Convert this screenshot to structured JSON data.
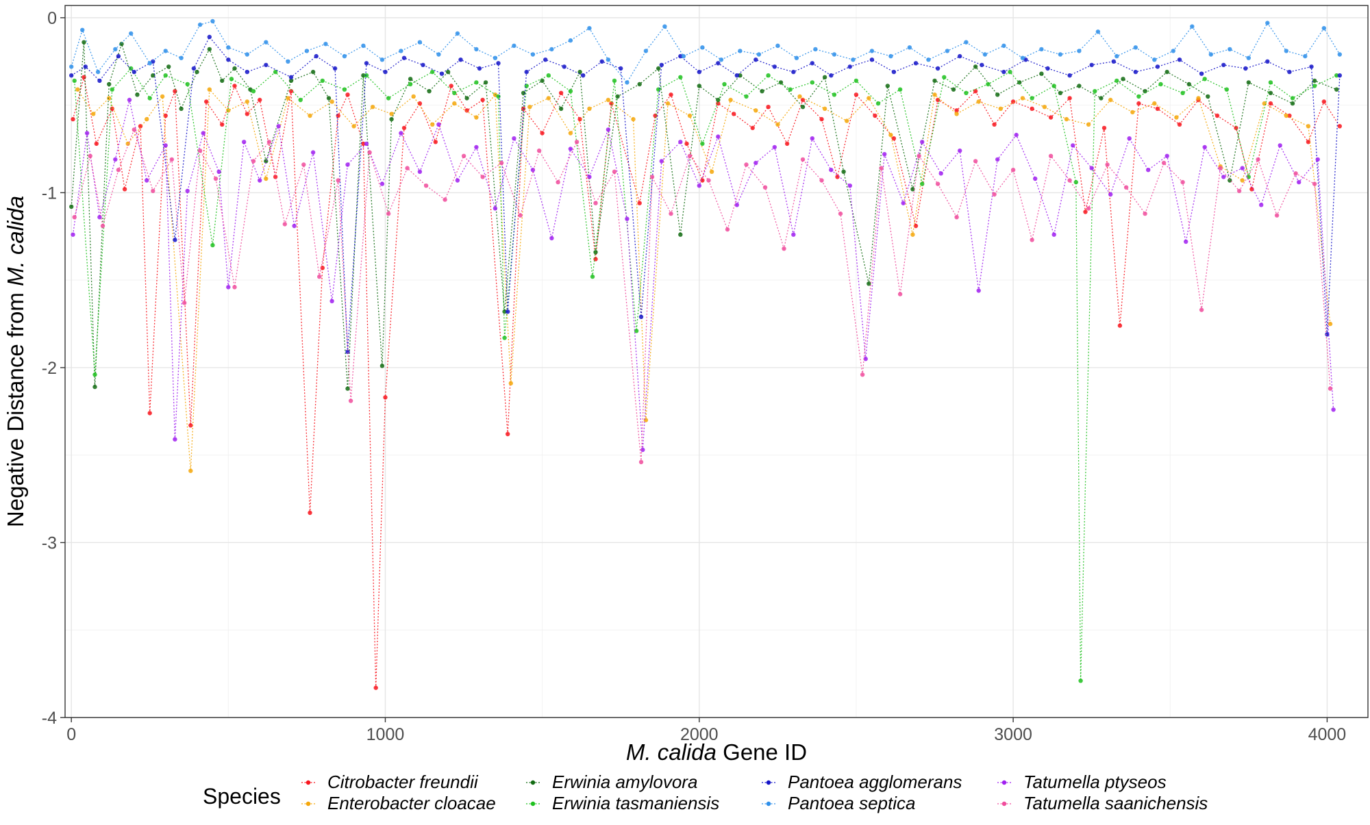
{
  "chart_data": {
    "type": "line",
    "xlabel": {
      "italic": "M. calida",
      "rest": " Gene ID"
    },
    "ylabel": {
      "rest": "Negative Distance from ",
      "italic": "M. calida"
    },
    "xlim": [
      -20,
      4130
    ],
    "ylim": [
      -4.0,
      0.07
    ],
    "x_ticks": [
      0,
      1000,
      2000,
      3000,
      4000
    ],
    "y_ticks": [
      -4,
      -3,
      -2,
      -1,
      0
    ],
    "x_tick_labels": [
      "0",
      "1000",
      "2000",
      "3000",
      "4000"
    ],
    "y_tick_labels": [
      "-4",
      "-3",
      "-2",
      "-1",
      "0"
    ],
    "grid": true,
    "line_style": "dotted",
    "legend": {
      "title": "Species",
      "position": "bottom"
    },
    "series": [
      {
        "name": "Citrobacter freundii",
        "color": "#F8151D",
        "x": [
          5,
          40,
          80,
          130,
          170,
          220,
          250,
          300,
          330,
          380,
          430,
          480,
          520,
          560,
          600,
          650,
          700,
          760,
          800,
          850,
          880,
          930,
          970,
          1000,
          1060,
          1110,
          1160,
          1210,
          1260,
          1310,
          1390,
          1440,
          1500,
          1560,
          1620,
          1670,
          1720,
          1810,
          1860,
          1910,
          1960,
          2010,
          2060,
          2110,
          2170,
          2220,
          2280,
          2330,
          2390,
          2440,
          2500,
          2560,
          2620,
          2690,
          2760,
          2820,
          2880,
          2940,
          3000,
          3060,
          3120,
          3180,
          3230,
          3290,
          3340,
          3400,
          3460,
          3530,
          3590,
          3650,
          3710,
          3760,
          3820,
          3880,
          3940,
          3990,
          4040
        ],
        "values": [
          -0.58,
          -0.34,
          -0.72,
          -0.52,
          -0.98,
          -0.62,
          -2.26,
          -0.56,
          -0.42,
          -2.33,
          -0.48,
          -0.61,
          -0.39,
          -0.55,
          -0.47,
          -0.91,
          -0.42,
          -2.83,
          -1.43,
          -0.56,
          -0.44,
          -0.72,
          -3.83,
          -2.17,
          -0.63,
          -0.49,
          -0.71,
          -0.39,
          -0.53,
          -0.47,
          -2.38,
          -0.52,
          -0.66,
          -0.43,
          -0.58,
          -1.38,
          -0.49,
          -1.06,
          -0.56,
          -0.44,
          -0.72,
          -0.93,
          -0.49,
          -0.55,
          -0.63,
          -0.51,
          -0.72,
          -0.47,
          -0.58,
          -0.91,
          -0.44,
          -0.56,
          -0.69,
          -1.19,
          -0.47,
          -0.53,
          -0.42,
          -0.61,
          -0.48,
          -0.52,
          -0.57,
          -0.46,
          -1.11,
          -0.63,
          -1.76,
          -0.49,
          -0.52,
          -0.61,
          -0.47,
          -0.56,
          -0.63,
          -0.98,
          -0.49,
          -0.56,
          -0.71,
          -0.48,
          -0.62
        ]
      },
      {
        "name": "Enterobacter cloacae",
        "color": "#F5A70B",
        "x": [
          20,
          70,
          120,
          180,
          240,
          290,
          380,
          440,
          500,
          560,
          620,
          690,
          760,
          830,
          900,
          960,
          1020,
          1090,
          1150,
          1220,
          1290,
          1350,
          1400,
          1460,
          1520,
          1590,
          1650,
          1710,
          1790,
          1830,
          1900,
          1970,
          2040,
          2100,
          2180,
          2250,
          2320,
          2400,
          2470,
          2540,
          2610,
          2680,
          2750,
          2820,
          2890,
          2960,
          3030,
          3100,
          3170,
          3240,
          3310,
          3380,
          3450,
          3520,
          3590,
          3660,
          3730,
          3800,
          3870,
          3940,
          4010
        ],
        "values": [
          -0.41,
          -0.55,
          -0.46,
          -0.72,
          -0.58,
          -0.45,
          -2.59,
          -0.41,
          -0.53,
          -0.48,
          -0.92,
          -0.46,
          -0.56,
          -0.48,
          -0.62,
          -0.51,
          -0.55,
          -0.45,
          -0.61,
          -0.49,
          -0.57,
          -0.44,
          -2.09,
          -0.51,
          -0.46,
          -0.66,
          -0.52,
          -0.47,
          -0.58,
          -2.3,
          -0.49,
          -0.56,
          -0.88,
          -0.47,
          -0.53,
          -0.61,
          -0.45,
          -0.52,
          -0.59,
          -0.46,
          -0.67,
          -1.24,
          -0.44,
          -0.55,
          -0.48,
          -0.52,
          -0.46,
          -0.51,
          -0.58,
          -0.61,
          -0.47,
          -0.54,
          -0.49,
          -0.57,
          -0.46,
          -0.85,
          -0.93,
          -0.49,
          -0.56,
          -0.62,
          -1.75
        ]
      },
      {
        "name": "Erwinia amylovora",
        "color": "#126B12",
        "x": [
          0,
          40,
          75,
          120,
          160,
          210,
          260,
          310,
          350,
          400,
          440,
          480,
          520,
          570,
          620,
          700,
          770,
          820,
          880,
          930,
          990,
          1020,
          1080,
          1140,
          1200,
          1260,
          1320,
          1380,
          1440,
          1500,
          1560,
          1620,
          1670,
          1740,
          1810,
          1870,
          1940,
          2000,
          2060,
          2130,
          2200,
          2260,
          2330,
          2400,
          2460,
          2540,
          2600,
          2680,
          2750,
          2810,
          2880,
          2950,
          3020,
          3090,
          3150,
          3210,
          3280,
          3350,
          3420,
          3490,
          3560,
          3620,
          3690,
          3750,
          3820,
          3890,
          3960,
          4030
        ],
        "values": [
          -1.08,
          -0.14,
          -2.11,
          -0.38,
          -0.15,
          -0.44,
          -0.33,
          -0.28,
          -0.52,
          -0.31,
          -0.18,
          -0.36,
          -0.29,
          -0.41,
          -0.82,
          -0.36,
          -0.31,
          -0.46,
          -2.12,
          -0.33,
          -1.99,
          -0.58,
          -0.35,
          -0.42,
          -0.31,
          -0.46,
          -0.37,
          -1.68,
          -0.43,
          -0.36,
          -0.52,
          -0.31,
          -1.34,
          -0.45,
          -0.38,
          -0.29,
          -1.24,
          -0.39,
          -0.47,
          -0.33,
          -0.42,
          -0.37,
          -0.51,
          -0.34,
          -0.88,
          -1.52,
          -0.39,
          -0.98,
          -0.36,
          -0.41,
          -0.28,
          -0.44,
          -0.37,
          -0.32,
          -0.43,
          -0.39,
          -0.46,
          -0.35,
          -0.42,
          -0.31,
          -0.38,
          -0.45,
          -0.93,
          -0.37,
          -0.43,
          -0.49,
          -0.36,
          -0.41
        ]
      },
      {
        "name": "Erwinia tasmaniensis",
        "color": "#1FC11F",
        "x": [
          10,
          75,
          130,
          190,
          250,
          300,
          370,
          450,
          510,
          580,
          650,
          730,
          800,
          870,
          940,
          1010,
          1080,
          1150,
          1220,
          1290,
          1360,
          1380,
          1450,
          1520,
          1590,
          1660,
          1730,
          1800,
          1870,
          1940,
          2010,
          2080,
          2150,
          2220,
          2290,
          2360,
          2430,
          2500,
          2570,
          2640,
          2710,
          2780,
          2850,
          2920,
          2990,
          3060,
          3130,
          3200,
          3215,
          3260,
          3330,
          3400,
          3470,
          3540,
          3610,
          3680,
          3750,
          3820,
          3890,
          3960,
          4030
        ],
        "values": [
          -0.36,
          -2.04,
          -0.41,
          -0.29,
          -0.46,
          -0.33,
          -0.38,
          -1.3,
          -0.35,
          -0.42,
          -0.31,
          -0.47,
          -0.36,
          -0.41,
          -0.33,
          -0.46,
          -0.38,
          -0.31,
          -0.43,
          -0.37,
          -0.45,
          -1.83,
          -0.39,
          -0.33,
          -0.42,
          -1.48,
          -0.36,
          -1.79,
          -0.41,
          -0.34,
          -0.72,
          -0.38,
          -0.45,
          -0.33,
          -0.41,
          -0.37,
          -0.44,
          -0.36,
          -0.49,
          -0.41,
          -0.95,
          -0.34,
          -0.43,
          -0.38,
          -0.31,
          -0.46,
          -0.39,
          -0.94,
          -3.79,
          -0.42,
          -0.36,
          -0.45,
          -0.38,
          -0.43,
          -0.35,
          -0.41,
          -0.91,
          -0.37,
          -0.46,
          -0.39,
          -0.33
        ]
      },
      {
        "name": "Pantoea agglomerans",
        "color": "#1414C8",
        "x": [
          0,
          45,
          90,
          150,
          200,
          260,
          330,
          390,
          440,
          500,
          560,
          620,
          700,
          780,
          840,
          880,
          940,
          1000,
          1060,
          1120,
          1180,
          1240,
          1300,
          1360,
          1390,
          1450,
          1510,
          1570,
          1630,
          1690,
          1750,
          1815,
          1880,
          1940,
          2000,
          2060,
          2120,
          2180,
          2240,
          2300,
          2360,
          2420,
          2480,
          2550,
          2620,
          2690,
          2760,
          2830,
          2900,
          2970,
          3040,
          3110,
          3180,
          3250,
          3320,
          3390,
          3460,
          3530,
          3600,
          3670,
          3740,
          3810,
          3880,
          3950,
          4000,
          4040
        ],
        "values": [
          -0.33,
          -0.28,
          -0.36,
          -0.22,
          -0.31,
          -0.25,
          -1.27,
          -0.29,
          -0.11,
          -0.24,
          -0.31,
          -0.27,
          -0.34,
          -0.22,
          -0.29,
          -1.91,
          -0.26,
          -0.31,
          -0.23,
          -0.27,
          -0.32,
          -0.24,
          -0.29,
          -0.26,
          -1.68,
          -0.31,
          -0.24,
          -0.28,
          -0.33,
          -0.25,
          -0.29,
          -1.71,
          -0.27,
          -0.22,
          -0.31,
          -0.26,
          -0.33,
          -0.24,
          -0.28,
          -0.31,
          -0.26,
          -0.33,
          -0.28,
          -0.24,
          -0.31,
          -0.26,
          -0.29,
          -0.22,
          -0.27,
          -0.31,
          -0.24,
          -0.29,
          -0.33,
          -0.27,
          -0.25,
          -0.31,
          -0.28,
          -0.24,
          -0.32,
          -0.27,
          -0.29,
          -0.25,
          -0.31,
          -0.28,
          -1.81,
          -0.33
        ]
      },
      {
        "name": "Pantoea septica",
        "color": "#2E8FEA",
        "x": [
          0,
          35,
          85,
          140,
          190,
          250,
          300,
          350,
          410,
          450,
          500,
          560,
          620,
          690,
          750,
          810,
          870,
          930,
          990,
          1050,
          1110,
          1170,
          1230,
          1290,
          1350,
          1410,
          1470,
          1530,
          1590,
          1650,
          1710,
          1770,
          1830,
          1890,
          1950,
          2010,
          2070,
          2130,
          2190,
          2250,
          2310,
          2370,
          2430,
          2490,
          2550,
          2610,
          2670,
          2730,
          2790,
          2850,
          2910,
          2970,
          3030,
          3090,
          3150,
          3210,
          3270,
          3330,
          3390,
          3450,
          3510,
          3570,
          3630,
          3690,
          3750,
          3810,
          3870,
          3930,
          3990,
          4040
        ],
        "values": [
          -0.28,
          -0.07,
          -0.31,
          -0.18,
          -0.09,
          -0.26,
          -0.19,
          -0.23,
          -0.04,
          -0.02,
          -0.17,
          -0.21,
          -0.14,
          -0.25,
          -0.19,
          -0.15,
          -0.22,
          -0.16,
          -0.24,
          -0.19,
          -0.14,
          -0.21,
          -0.09,
          -0.18,
          -0.23,
          -0.16,
          -0.21,
          -0.18,
          -0.13,
          -0.06,
          -0.24,
          -0.37,
          -0.19,
          -0.05,
          -0.22,
          -0.17,
          -0.24,
          -0.19,
          -0.21,
          -0.16,
          -0.23,
          -0.18,
          -0.21,
          -0.24,
          -0.19,
          -0.22,
          -0.17,
          -0.24,
          -0.19,
          -0.14,
          -0.21,
          -0.16,
          -0.23,
          -0.18,
          -0.21,
          -0.19,
          -0.08,
          -0.22,
          -0.17,
          -0.24,
          -0.19,
          -0.05,
          -0.21,
          -0.18,
          -0.23,
          -0.03,
          -0.19,
          -0.22,
          -0.06,
          -0.21
        ]
      },
      {
        "name": "Tatumella ptyseos",
        "color": "#A020F0",
        "x": [
          5,
          50,
          90,
          140,
          185,
          240,
          300,
          330,
          370,
          420,
          470,
          500,
          550,
          600,
          660,
          710,
          770,
          830,
          880,
          940,
          990,
          1050,
          1110,
          1170,
          1230,
          1290,
          1350,
          1410,
          1470,
          1530,
          1590,
          1650,
          1710,
          1770,
          1820,
          1880,
          1940,
          2000,
          2060,
          2120,
          2180,
          2240,
          2300,
          2360,
          2420,
          2480,
          2530,
          2590,
          2650,
          2710,
          2770,
          2830,
          2890,
          2950,
          3010,
          3070,
          3130,
          3190,
          3250,
          3310,
          3370,
          3430,
          3490,
          3550,
          3610,
          3670,
          3730,
          3790,
          3850,
          3910,
          3970,
          4020
        ],
        "values": [
          -1.24,
          -0.66,
          -1.14,
          -0.81,
          -0.47,
          -0.93,
          -0.73,
          -2.41,
          -0.99,
          -0.66,
          -0.88,
          -1.54,
          -0.71,
          -0.93,
          -0.62,
          -1.19,
          -0.77,
          -1.62,
          -0.84,
          -0.72,
          -0.95,
          -0.66,
          -0.88,
          -0.61,
          -0.93,
          -0.74,
          -1.09,
          -0.69,
          -0.87,
          -1.26,
          -0.75,
          -0.91,
          -0.64,
          -1.15,
          -2.47,
          -0.82,
          -0.71,
          -0.96,
          -0.68,
          -1.07,
          -0.83,
          -0.74,
          -1.24,
          -0.69,
          -0.87,
          -0.96,
          -1.95,
          -0.78,
          -1.06,
          -0.71,
          -0.89,
          -0.76,
          -1.56,
          -0.81,
          -0.67,
          -0.92,
          -1.24,
          -0.73,
          -0.86,
          -1.01,
          -0.69,
          -0.87,
          -0.79,
          -1.28,
          -0.74,
          -0.91,
          -0.86,
          -1.07,
          -0.73,
          -0.94,
          -0.81,
          -2.24
        ]
      },
      {
        "name": "Tatumella saanichensis",
        "color": "#F04C9C",
        "x": [
          10,
          60,
          100,
          150,
          200,
          260,
          320,
          360,
          410,
          460,
          520,
          580,
          630,
          680,
          740,
          790,
          850,
          890,
          950,
          1010,
          1070,
          1130,
          1190,
          1250,
          1310,
          1370,
          1430,
          1490,
          1550,
          1610,
          1670,
          1730,
          1815,
          1850,
          1910,
          1970,
          2030,
          2090,
          2150,
          2210,
          2270,
          2330,
          2390,
          2450,
          2520,
          2580,
          2640,
          2700,
          2760,
          2820,
          2880,
          2940,
          3000,
          3060,
          3120,
          3180,
          3240,
          3300,
          3360,
          3420,
          3480,
          3540,
          3600,
          3660,
          3720,
          3780,
          3840,
          3900,
          3960,
          4010
        ],
        "values": [
          -1.14,
          -0.79,
          -1.19,
          -0.87,
          -0.64,
          -0.99,
          -0.81,
          -1.63,
          -0.76,
          -0.92,
          -1.54,
          -0.82,
          -0.71,
          -1.18,
          -0.84,
          -1.48,
          -0.93,
          -2.19,
          -0.77,
          -1.12,
          -0.86,
          -0.96,
          -1.04,
          -0.79,
          -0.91,
          -0.83,
          -1.13,
          -0.76,
          -0.94,
          -0.71,
          -1.06,
          -0.88,
          -2.54,
          -0.91,
          -1.12,
          -0.79,
          -0.93,
          -1.21,
          -0.84,
          -0.97,
          -1.32,
          -0.81,
          -0.93,
          -1.12,
          -2.04,
          -0.86,
          -1.58,
          -0.79,
          -0.95,
          -1.14,
          -0.82,
          -1.01,
          -0.87,
          -1.27,
          -0.79,
          -0.93,
          -1.09,
          -0.84,
          -0.97,
          -1.12,
          -0.83,
          -0.94,
          -1.67,
          -0.86,
          -0.99,
          -0.81,
          -1.13,
          -0.89,
          -0.95,
          -2.12
        ]
      }
    ]
  }
}
